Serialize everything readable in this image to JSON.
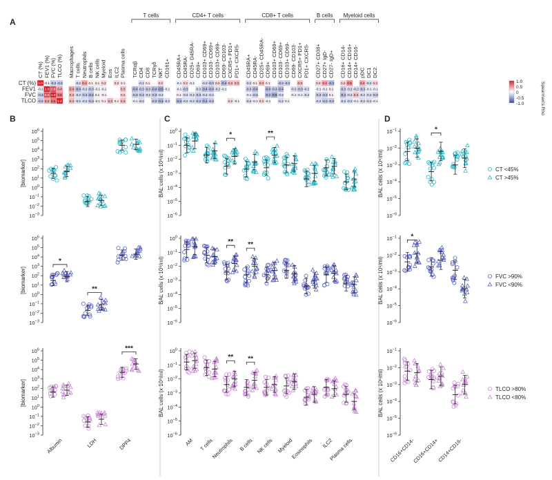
{
  "panel_labels": [
    "A",
    "B",
    "C",
    "D"
  ],
  "colors": {
    "ct": "#2bb6c6",
    "fvc": "#5a63c8",
    "tlco": "#c98ad4",
    "heat_pos": "#d1242f",
    "heat_neg": "#3c4ea8",
    "heat_mid": "#ffffff",
    "stroke": "#222222"
  },
  "chart_data": [
    {
      "id": "A",
      "type": "heatmap",
      "rows": [
        "CT (%)",
        "FEV1 (%)",
        "FVC (%)",
        "TLCO (%)"
      ],
      "row_labels_display": [
        "CT (%)",
        "FEV1",
        "FVC",
        "TLCO"
      ],
      "legend_title": "Spearman's Rho",
      "legend_ticks": [
        "1.0",
        "0.5",
        "0",
        "-0.5",
        "-1.0"
      ],
      "groups": [
        {
          "name": "",
          "columns": [
            "CT (%)",
            "FEV1 (%)",
            "FVC (%)",
            "TLCO (%)"
          ],
          "values": [
            [
              1.0,
              -0.1,
              -0.3,
              -0.3
            ],
            [
              -0.1,
              1.0,
              0.8,
              0.4
            ],
            [
              -0.3,
              0.8,
              1.0,
              0.6
            ],
            [
              -0.3,
              0.4,
              0.6,
              1.0
            ]
          ]
        },
        {
          "name": "",
          "columns": [
            "Macrophages",
            "T cells",
            "Neutrophils",
            "B cells",
            "NK cells",
            "Myeloid",
            "Eos",
            "ILC2",
            "Plasma cells"
          ],
          "values": [
            [
              null,
              -0.2,
              0.4,
              0.1,
              0.1,
              0.2,
              null,
              0.2,
              0.1
            ],
            [
              0.4,
              -0.4,
              -0.2,
              -0.3,
              -0.1,
              -0.1,
              null,
              null,
              0.3
            ],
            [
              0.3,
              -0.2,
              -0.3,
              -0.4,
              0.1,
              -0.1,
              null,
              null,
              0.2
            ],
            [
              0.3,
              -0.2,
              -0.2,
              -0.3,
              -0.1,
              0.1,
              0.3,
              0.1,
              0.3
            ]
          ]
        },
        {
          "name": "T cells",
          "columns": [
            "TCRαβ",
            "CD4",
            "CD8",
            "TCRγδ",
            "NKT",
            "CD161+"
          ],
          "values": [
            [
              null,
              -0.2,
              0.1,
              null,
              0.2,
              null
            ],
            [
              -0.4,
              -0.3,
              -0.3,
              -0.4,
              -0.5,
              -0.1
            ],
            [
              -0.3,
              -0.3,
              -0.2,
              -0.3,
              -0.2,
              null
            ],
            [
              -0.1,
              -0.2,
              null,
              -0.3,
              -0.4,
              -0.2
            ]
          ]
        },
        {
          "name": "CD4+ T cells",
          "columns": [
            "CD45RA+",
            "CD45RA-",
            "CD25+ D45RA-",
            "CD69+",
            "CD103+ CD69+",
            "CD103- CD69+",
            "CD103+ CD69-",
            "CD69- CD103-",
            "CXCR5+ PD1+",
            "PD1+ CXCR5-"
          ],
          "values": [
            [
              -0.1,
              0.2,
              -0.1,
              null,
              -0.2,
              -0.3,
              0.2,
              -0.4,
              0.3,
              0.3
            ],
            [
              -0.1,
              -0.3,
              null,
              -0.2,
              -0.4,
              -0.4,
              -0.2,
              -0.1,
              null,
              null
            ],
            [
              0.1,
              -0.2,
              -0.2,
              -0.3,
              -0.2,
              -0.2,
              null,
              null,
              null,
              null
            ],
            [
              -0.4,
              -0.2,
              -0.2,
              -0.3,
              -0.4,
              -0.3,
              null,
              null,
              0.2,
              -0.1
            ]
          ]
        },
        {
          "name": "CD8+ T cells",
          "columns": [
            "CD45RA+",
            "CD45RA-",
            "CD25+ CD45RA-",
            "CD69+",
            "CD103+ CD69+",
            "CD103- CD69+",
            "CD103+ CD69-",
            "CD69- CD103-",
            "CXCR5+ PD1+",
            "PD1+ CXCR5-"
          ],
          "values": [
            [
              -0.2,
              0.1,
              0.3,
              0.1,
              null,
              -0.3,
              -0.3,
              null,
              0.3,
              null
            ],
            [
              -0.3,
              -0.4,
              null,
              -0.4,
              -0.3,
              -0.4,
              null,
              -0.2,
              -0.3,
              -0.2
            ],
            [
              -0.1,
              -0.3,
              null,
              -0.4,
              -0.5,
              -0.2,
              null,
              -0.1,
              -0.1,
              -0.2
            ],
            [
              -0.2,
              -0.1,
              0.2,
              -0.1,
              null,
              -0.2,
              0.1,
              null,
              null,
              null
            ]
          ]
        },
        {
          "name": "B cells",
          "columns": [
            "CD27+ CD38+",
            "CD27+ IgD-",
            "CD27- IgD+"
          ],
          "values": [
            [
              0.2,
              0.4,
              -0.4
            ],
            [
              -0.1,
              -0.1,
              0.1
            ],
            [
              -0.3,
              -0.3,
              0.1
            ],
            [
              -0.2,
              -0.3,
              -0.3
            ]
          ]
        },
        {
          "name": "Myeloid cells",
          "columns": [
            "CD16+ CD14-",
            "CD14+ CD16+",
            "CD14+ CD16-",
            "pDC",
            "DC1",
            "DC2"
          ],
          "values": [
            [
              0.2,
              0.5,
              null,
              0.4,
              -0.2,
              0.2
            ],
            [
              -0.3,
              -0.2,
              -0.2,
              -0.3,
              -0.1,
              -0.1
            ],
            [
              -0.4,
              -0.2,
              0.3,
              -0.2,
              -0.2,
              -0.3
            ],
            [
              -0.2,
              -0.2,
              -0.1,
              -0.2,
              -0.2,
              -0.1
            ]
          ]
        }
      ]
    },
    {
      "id": "B",
      "type": "scatter",
      "ylabel": "[biomarker]",
      "yscale": "log",
      "ylim_exp": [
        -3,
        6
      ],
      "categories": [
        "Albumin",
        "LDH",
        "DPP4"
      ],
      "rows": [
        {
          "color": "ct",
          "medians_log": [
            [
              1.5,
              1.7
            ],
            [
              -1.5,
              -1.4
            ],
            [
              4.5,
              4.6
            ]
          ],
          "sig": []
        },
        {
          "color": "fvc",
          "medians_log": [
            [
              1.5,
              1.9
            ],
            [
              -1.7,
              -1.1
            ],
            [
              4.2,
              4.3
            ]
          ],
          "sig": [
            {
              "cat": 0,
              "text": "*"
            },
            {
              "cat": 1,
              "text": "**"
            }
          ]
        },
        {
          "color": "tlco",
          "medians_log": [
            [
              1.6,
              1.8
            ],
            [
              -1.6,
              -1.3
            ],
            [
              3.7,
              4.6
            ]
          ],
          "sig": [
            {
              "cat": 2,
              "text": "***"
            }
          ]
        }
      ]
    },
    {
      "id": "C",
      "type": "scatter",
      "ylabel": "BAL cells (x 10⁶/ml)",
      "yscale": "log",
      "ylim_exp": [
        -6,
        0
      ],
      "categories": [
        "AM",
        "T cells",
        "Neutrophils",
        "B cells",
        "NK cells",
        "Myeloid",
        "Eosinophils",
        "ILC2",
        "Plasma cells"
      ],
      "rows": [
        {
          "color": "ct",
          "medians_log": [
            [
              -1.0,
              -0.7
            ],
            [
              -1.7,
              -1.4
            ],
            [
              -2.5,
              -1.8
            ],
            [
              -2.7,
              -2.2
            ],
            [
              -2.6,
              -1.7
            ],
            [
              -2.4,
              -2.3
            ],
            [
              -3.4,
              -3.0
            ],
            [
              -2.6,
              -2.5
            ],
            [
              -3.6,
              -3.4
            ]
          ],
          "sig": [
            {
              "cat": 2,
              "text": "*"
            },
            {
              "cat": 4,
              "text": "**"
            }
          ]
        },
        {
          "color": "fvc",
          "medians_log": [
            [
              -0.8,
              -0.6
            ],
            [
              -1.2,
              -1.3
            ],
            [
              -2.4,
              -1.8
            ],
            [
              -2.6,
              -2.0
            ],
            [
              -2.6,
              -2.3
            ],
            [
              -2.3,
              -2.5
            ],
            [
              -3.4,
              -3.0
            ],
            [
              -2.6,
              -2.5
            ],
            [
              -3.2,
              -3.3
            ]
          ],
          "sig": [
            {
              "cat": 2,
              "text": "**"
            },
            {
              "cat": 3,
              "text": "**"
            }
          ]
        },
        {
          "color": "tlco",
          "medians_log": [
            [
              -0.8,
              -0.7
            ],
            [
              -1.2,
              -1.3
            ],
            [
              -2.4,
              -2.0
            ],
            [
              -2.6,
              -2.1
            ],
            [
              -2.6,
              -2.4
            ],
            [
              -2.5,
              -2.2
            ],
            [
              -3.3,
              -3.1
            ],
            [
              -2.6,
              -2.7
            ],
            [
              -3.1,
              -3.6
            ]
          ],
          "sig": [
            {
              "cat": 2,
              "text": "**"
            },
            {
              "cat": 3,
              "text": "**"
            }
          ]
        }
      ]
    },
    {
      "id": "D",
      "type": "scatter",
      "ylabel": "BAL cells (x 10⁶/ml)",
      "yscale": "log",
      "ylim_exp": [
        -6,
        -1
      ],
      "categories": [
        "CD16+CD14-",
        "CD16+CD14+",
        "CD14+CD16-"
      ],
      "rows": [
        {
          "color": "ct",
          "medians_log": [
            [
              -2.2,
              -2.0
            ],
            [
              -3.4,
              -2.2
            ],
            [
              -3.0,
              -2.6
            ]
          ],
          "sig": [
            {
              "cat": 1,
              "text": "*"
            }
          ],
          "legend": [
            "CT <45%",
            "CT >45%"
          ]
        },
        {
          "color": "fvc",
          "medians_log": [
            [
              -2.4,
              -1.9
            ],
            [
              -2.7,
              -2.3
            ],
            [
              -2.9,
              -4.0
            ]
          ],
          "sig": [
            {
              "cat": 0,
              "text": "*"
            }
          ],
          "legend": [
            "FVC >90%",
            "FVC <90%"
          ]
        },
        {
          "color": "tlco",
          "medians_log": [
            [
              -2.2,
              -2.3
            ],
            [
              -2.7,
              -2.5
            ],
            [
              -3.6,
              -3.0
            ]
          ],
          "sig": [],
          "legend": [
            "TLCO >80%",
            "TLCO <80%"
          ]
        }
      ]
    }
  ]
}
